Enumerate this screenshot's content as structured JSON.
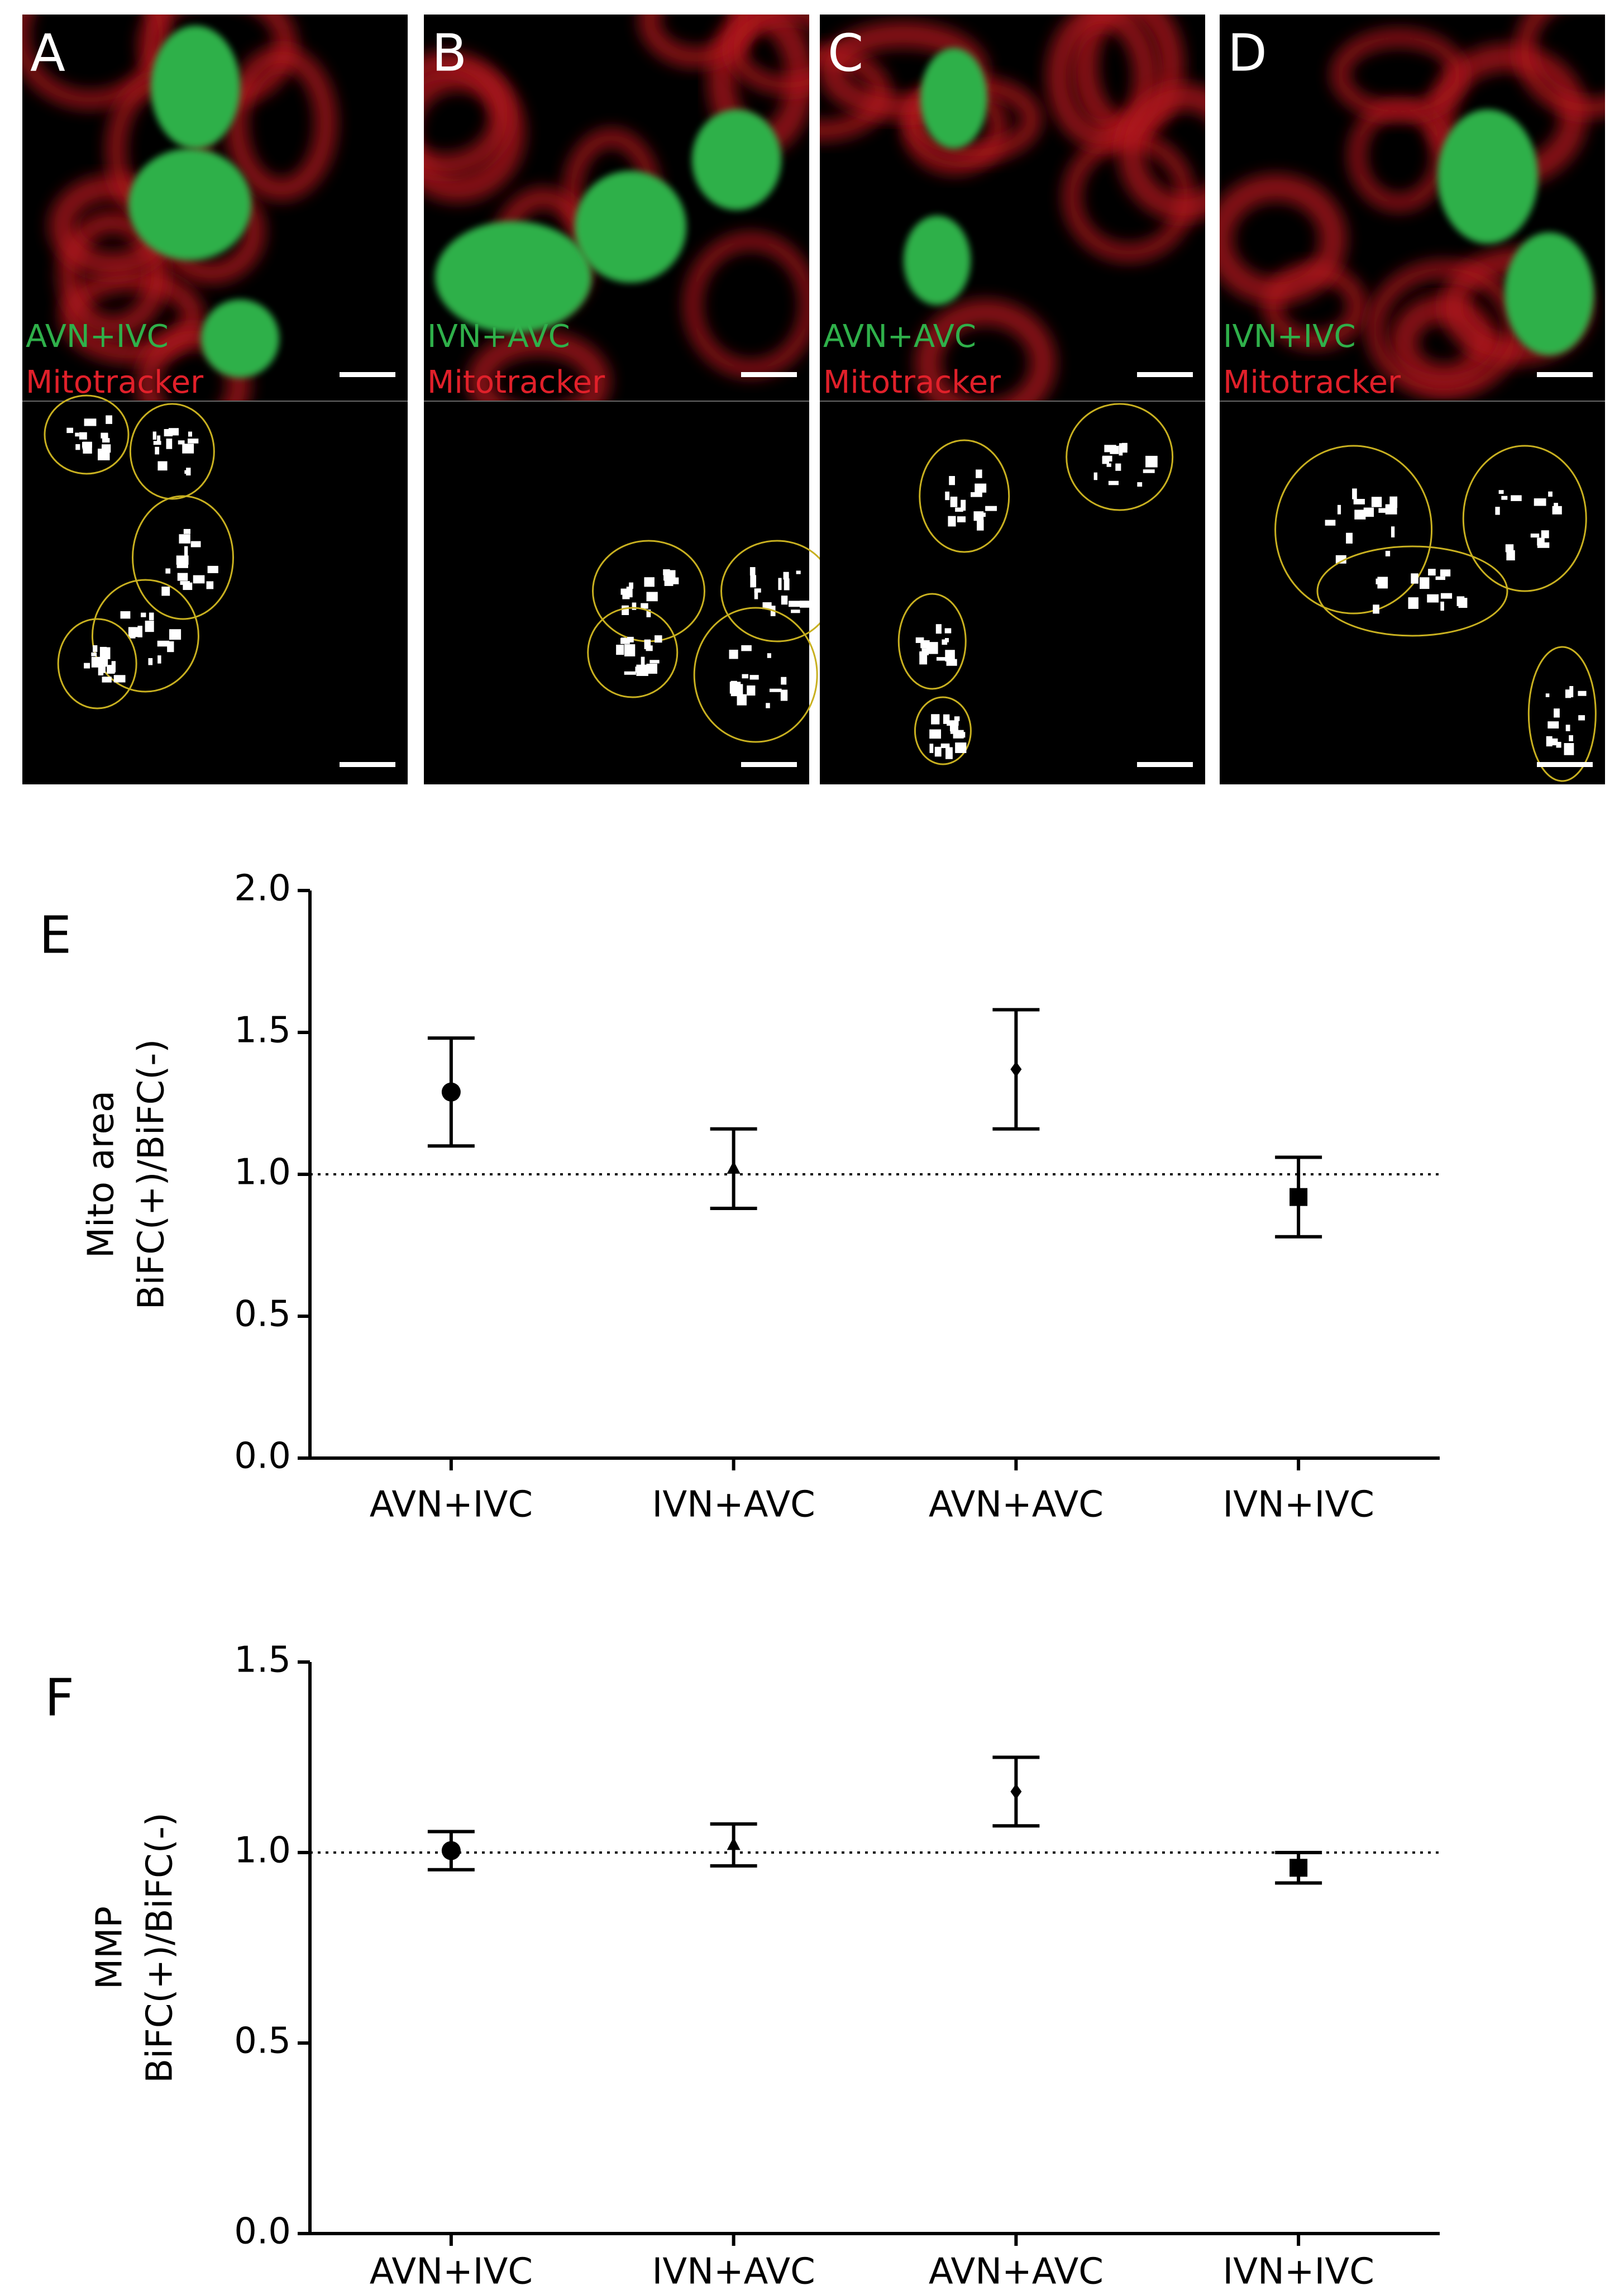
{
  "panels": [
    {
      "label": "A",
      "green_label": "AVN+IVC",
      "red_label": "Mitotracker"
    },
    {
      "label": "B",
      "green_label": "IVN+AVC",
      "red_label": "Mitotracker"
    },
    {
      "label": "C",
      "green_label": "AVN+AVC",
      "red_label": "Mitotracker"
    },
    {
      "label": "D",
      "green_label": "IVN+IVC",
      "red_label": "Mitotracker"
    }
  ],
  "chart_data": [
    {
      "type": "errorbar",
      "panel_label": "E",
      "ylabel": [
        "Mito area",
        "BiFC(+)/BiFC(-)"
      ],
      "categories": [
        "AVN+IVC",
        "IVN+AVC",
        "AVN+AVC",
        "IVN+IVC"
      ],
      "values": [
        1.29,
        1.02,
        1.37,
        0.92
      ],
      "errors": [
        0.19,
        0.14,
        0.21,
        0.14
      ],
      "markers": [
        "circle",
        "triangle",
        "diamond",
        "square"
      ],
      "color": "#000000",
      "ylim": [
        0,
        2
      ],
      "yticks": [
        {
          "value": 0,
          "label": "0.0"
        },
        {
          "value": 0.5,
          "label": "0.5"
        },
        {
          "value": 1,
          "label": "1.0"
        },
        {
          "value": 1.5,
          "label": "1.5"
        },
        {
          "value": 2,
          "label": "2.0"
        }
      ],
      "hline": 1
    },
    {
      "type": "errorbar",
      "panel_label": "F",
      "ylabel": [
        "MMP",
        "BiFC(+)/BiFC(-)"
      ],
      "categories": [
        "AVN+IVC",
        "IVN+AVC",
        "AVN+AVC",
        "IVN+IVC"
      ],
      "values": [
        1.005,
        1.02,
        1.16,
        0.96
      ],
      "errors": [
        0.05,
        0.055,
        0.09,
        0.04
      ],
      "markers": [
        "circle",
        "triangle",
        "diamond",
        "square"
      ],
      "color": "#000000",
      "ylim": [
        0,
        1.5
      ],
      "yticks": [
        {
          "value": 0,
          "label": "0.0"
        },
        {
          "value": 0.5,
          "label": "0.5"
        },
        {
          "value": 1,
          "label": "1.0"
        },
        {
          "value": 1.5,
          "label": "1.5"
        }
      ],
      "hline": 1
    }
  ]
}
